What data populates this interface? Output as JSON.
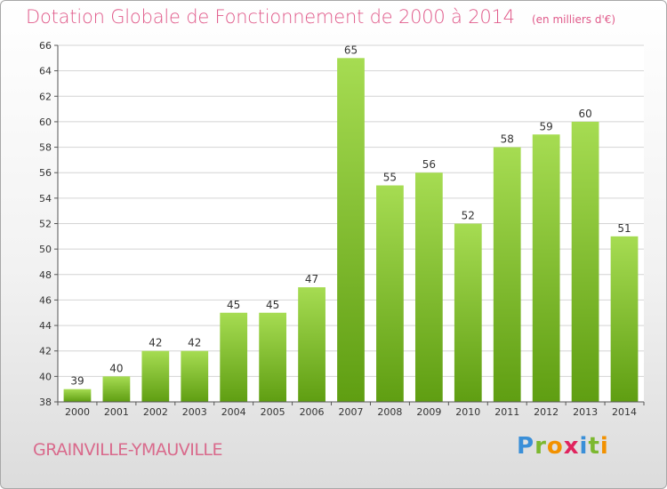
{
  "header": {
    "title": "Dotation Globale de Fonctionnement de 2000 à 2014",
    "unit": "(en milliers d'€)"
  },
  "footer": {
    "place": "GRAINVILLE-YMAUVILLE",
    "brand": [
      "P",
      "r",
      "o",
      "x",
      "i",
      "t",
      "i"
    ],
    "brand_colors": [
      "#3a8fd8",
      "#7cb82f",
      "#f29100",
      "#e0245e",
      "#3a8fd8",
      "#7cb82f",
      "#f29100"
    ]
  },
  "colors": {
    "bar_top": "#a6dc52",
    "bar_bottom": "#5f9e12",
    "title": "#e05a8a",
    "grid": "#d4d4d4"
  },
  "chart_data": {
    "type": "bar",
    "title": "Dotation Globale de Fonctionnement de 2000 à 2014",
    "subtitle": "(en milliers d'€)",
    "categories": [
      "2000",
      "2001",
      "2002",
      "2003",
      "2004",
      "2005",
      "2006",
      "2007",
      "2008",
      "2009",
      "2010",
      "2011",
      "2012",
      "2013",
      "2014"
    ],
    "values": [
      39,
      40,
      42,
      42,
      45,
      45,
      47,
      65,
      55,
      56,
      52,
      58,
      59,
      60,
      51
    ],
    "ylim": [
      38,
      66
    ],
    "yticks": [
      38,
      40,
      42,
      44,
      46,
      48,
      50,
      52,
      54,
      56,
      58,
      60,
      62,
      64,
      66
    ],
    "grid": true,
    "legend": "none"
  }
}
